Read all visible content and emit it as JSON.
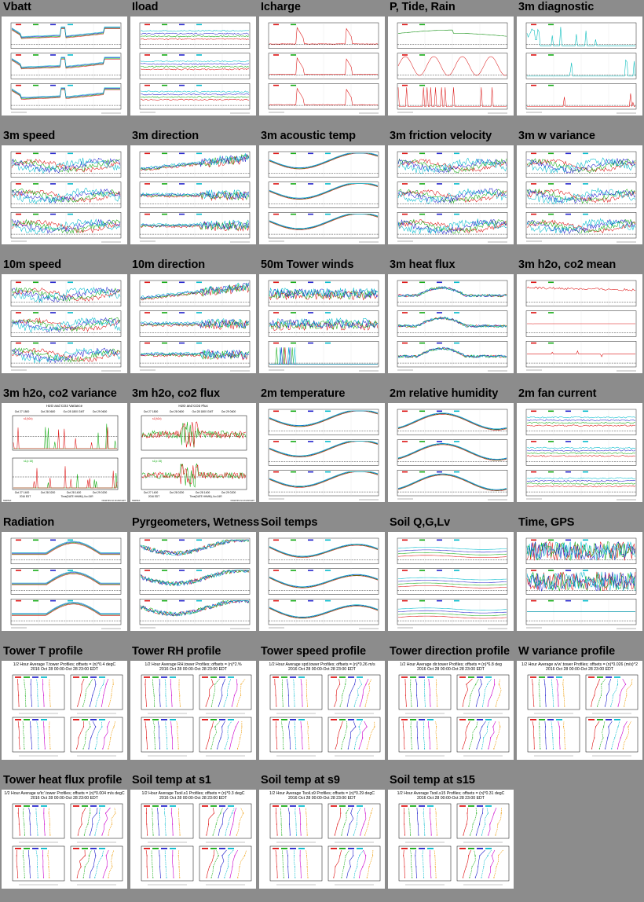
{
  "tiles": [
    {
      "title": "Vbatt",
      "kind": "ts3",
      "style": "vbatt"
    },
    {
      "title": "Iload",
      "kind": "ts3",
      "style": "flat"
    },
    {
      "title": "Icharge",
      "kind": "ts3",
      "style": "charge"
    },
    {
      "title": "P, Tide, Rain",
      "kind": "ts3",
      "style": "ptr"
    },
    {
      "title": "3m diagnostic",
      "kind": "ts3",
      "style": "spikes"
    },
    {
      "title": "3m speed",
      "kind": "ts3",
      "style": "noisy"
    },
    {
      "title": "3m direction",
      "kind": "ts3",
      "style": "dir"
    },
    {
      "title": "3m acoustic temp",
      "kind": "ts3",
      "style": "temp"
    },
    {
      "title": "3m friction velocity",
      "kind": "ts3",
      "style": "noisy"
    },
    {
      "title": "3m w variance",
      "kind": "ts3",
      "style": "noisy"
    },
    {
      "title": "10m speed",
      "kind": "ts3",
      "style": "noisy"
    },
    {
      "title": "10m direction",
      "kind": "ts3",
      "style": "dir"
    },
    {
      "title": "50m Tower winds",
      "kind": "ts3",
      "style": "tower"
    },
    {
      "title": "3m heat flux",
      "kind": "ts3",
      "style": "flux"
    },
    {
      "title": "3m h2o, co2 mean",
      "kind": "ts3",
      "style": "spikes2"
    },
    {
      "title": "3m h2o, co2 variance",
      "kind": "ts2",
      "style": "var"
    },
    {
      "title": "3m h2o, co2 flux",
      "kind": "ts2",
      "style": "cflux"
    },
    {
      "title": "2m temperature",
      "kind": "ts3",
      "style": "temp"
    },
    {
      "title": "2m relative humidity",
      "kind": "ts3",
      "style": "rh"
    },
    {
      "title": "2m fan current",
      "kind": "ts3",
      "style": "flat"
    },
    {
      "title": "Radiation",
      "kind": "ts3",
      "style": "rad"
    },
    {
      "title": "Pyrgeometers, Wetness",
      "kind": "ts3",
      "style": "pyr"
    },
    {
      "title": "Soil temps",
      "kind": "ts3",
      "style": "soil"
    },
    {
      "title": "Soil Q,G,Lv",
      "kind": "ts3",
      "style": "soilq"
    },
    {
      "title": "Time, GPS",
      "kind": "ts3",
      "style": "gps"
    },
    {
      "title": "Tower T profile",
      "kind": "prof",
      "header": "1/2 Hour Average T.tower Profiles; offsets = (n)*0.4 degC",
      "sub": "2016 Oct 28 00:00-Oct 28 23:00 EDT"
    },
    {
      "title": "Tower RH profile",
      "kind": "prof",
      "header": "1/2 Hour Average RH.tower Profiles; offsets = (n)*2.%",
      "sub": "2016 Oct 28 00:00-Oct 28 23:00 EDT"
    },
    {
      "title": "Tower speed profile",
      "kind": "prof",
      "header": "1/2 Hour Average spd.tower Profiles; offsets = (n)*0.26 m/s",
      "sub": "2016 Oct 28 00:00-Oct 28 23:00 EDT"
    },
    {
      "title": "Tower direction profile",
      "kind": "prof",
      "header": "1/2 Hour Average dir.tower Profiles; offsets = (n)*6.8 deg",
      "sub": "2016 Oct 28 00:00-Oct 28 23:00 EDT"
    },
    {
      "title": "W variance profile",
      "kind": "prof",
      "header": "1/2 Hour Average w'w'.tower Profiles; offsets = (n)*0.026 (m/s)^2",
      "sub": "2016 Oct 28 00:00-Oct 28 23:00 EDT"
    },
    {
      "title": "Tower heat flux profile",
      "kind": "prof",
      "header": "1/2 Hour Average w'tc'.tower Profiles; offsets = (n)*0.004 m/s degC",
      "sub": "2016 Oct 28 00:00-Oct 28 23:00 EDT"
    },
    {
      "title": "Soil temp at s1",
      "kind": "prof",
      "header": "1/2 Hour Average Tsoil.s1 Profiles; offsets = (n)*0.3 degC",
      "sub": "2016 Oct 28 00:00-Oct 28 23:00 EDT"
    },
    {
      "title": "Soil temp at s9",
      "kind": "prof",
      "header": "1/2 Hour Average Tsoil.s9 Profiles; offsets = (n)*0.29 degC",
      "sub": "2016 Oct 28 00:00-Oct 28 23:00 EDT"
    },
    {
      "title": "Soil temp at s15",
      "kind": "prof",
      "header": "1/2 Hour Average Tsoil.s15 Profiles; offsets = (n)*0.31 degC",
      "sub": "2016 Oct 28 00:00-Oct 28 23:00 EDT"
    }
  ],
  "plot_text": {
    "var_title": "H2O and CO2 Variance",
    "flux_title": "H2O and CO2 Flux",
    "top_dates": [
      "Oct 27 1800",
      "Oct 28 0600",
      "Oct 28 1800 GMT",
      "Oct 29 0600"
    ],
    "bot_dates": [
      "Oct 27 1400",
      "Oct 28 0200",
      "Oct 28 1400",
      "Oct 29 0200"
    ],
    "year_label": "2016 EDT",
    "time_label": "Time(DATE HHMM), Ilo=24R",
    "series_a": "s1(h2o)",
    "series_b": "s1(c 15)",
    "footer_left": "NWRTEX",
    "footer_right": "NCAR:ISS Oct 29 2016 EDT"
  }
}
